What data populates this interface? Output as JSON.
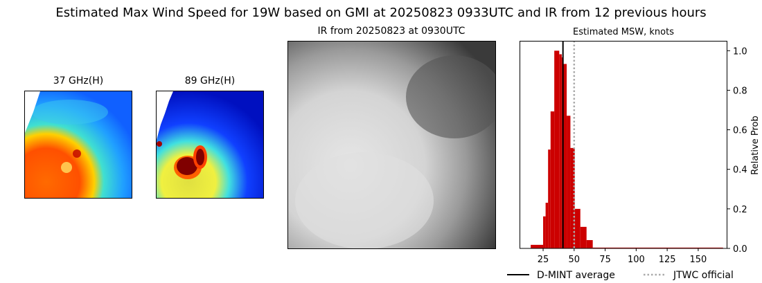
{
  "suptitle": "Estimated Max Wind Speed for 19W based on GMI at 20250823 0933UTC and IR from 12 previous hours",
  "panels": {
    "mw37_title": "37 GHz(H)",
    "mw89_title": "89 GHz(H)",
    "ir_title": "IR from 20250823 at 0930UTC"
  },
  "chart_data": {
    "type": "bar",
    "title": "Estimated MSW, knots",
    "xlabel": "",
    "ylabel": "Relative Prob",
    "xlim": [
      6,
      173.5
    ],
    "ylim": [
      0,
      1.05
    ],
    "xticks": [
      25,
      50,
      75,
      100,
      125,
      150
    ],
    "yticks": [
      "0.0",
      "0.2",
      "0.4",
      "0.6",
      "0.8",
      "1.0"
    ],
    "yaxis_side": "right",
    "grid": false,
    "bar_color": "#cc0000",
    "bins": [
      {
        "from": 15,
        "to": 25,
        "value": 0.018
      },
      {
        "from": 25,
        "to": 27,
        "value": 0.162
      },
      {
        "from": 27,
        "to": 29,
        "value": 0.231
      },
      {
        "from": 29,
        "to": 31,
        "value": 0.5
      },
      {
        "from": 31,
        "to": 34,
        "value": 0.693
      },
      {
        "from": 34,
        "to": 38,
        "value": 1.0
      },
      {
        "from": 38,
        "to": 40,
        "value": 0.982
      },
      {
        "from": 40,
        "to": 41,
        "value": 0.966
      },
      {
        "from": 41,
        "to": 44,
        "value": 0.933
      },
      {
        "from": 44,
        "to": 47,
        "value": 0.671
      },
      {
        "from": 47,
        "to": 50.5,
        "value": 0.508
      },
      {
        "from": 50.5,
        "to": 55,
        "value": 0.2
      },
      {
        "from": 55,
        "to": 60,
        "value": 0.109
      },
      {
        "from": 60,
        "to": 65,
        "value": 0.042
      },
      {
        "from": 65,
        "to": 170,
        "value": 0.004
      }
    ],
    "lines": [
      {
        "name": "D-MINT average",
        "x": 41,
        "color": "#000000",
        "style": "solid"
      },
      {
        "name": "JTWC official",
        "x": 50,
        "color": "#aaaaaa",
        "style": "dotted"
      }
    ],
    "legend_placement": "bottom"
  }
}
